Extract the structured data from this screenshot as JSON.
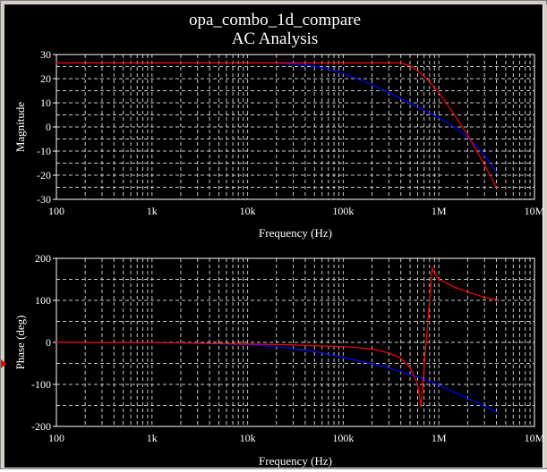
{
  "window": {
    "title": "opa_combo_1d_compare",
    "subtitle": "AC Analysis"
  },
  "colors": {
    "background": "#000000",
    "text": "#ffffff",
    "grid": "#c8c8c8",
    "red": "#ff0000",
    "blue": "#0000ff",
    "marker": "#ff0000"
  },
  "chart_data": [
    {
      "type": "line",
      "title": "opa_combo_1d_compare",
      "subtitle": "AC Analysis",
      "xlabel": "Frequency (Hz)",
      "ylabel": "Magnitude",
      "xscale": "log",
      "xlim": [
        100,
        10000000
      ],
      "ylim": [
        -30,
        30
      ],
      "grid": true,
      "xticks": [
        100,
        1000,
        10000,
        100000,
        1000000,
        10000000
      ],
      "xticklabels": [
        "100",
        "1k",
        "10k",
        "100k",
        "1M",
        "10M"
      ],
      "yticks": [
        -30,
        -20,
        -10,
        0,
        10,
        20,
        30
      ],
      "yticklabels": [
        "-30",
        "-20",
        "-10",
        "0",
        "10",
        "20",
        "30"
      ],
      "series": [
        {
          "color": "#0000ff",
          "x": [
            100,
            1000,
            10000,
            20000,
            30000,
            50000,
            70000,
            100000,
            150000,
            200000,
            300000,
            500000,
            700000,
            1000000,
            1500000,
            2000000,
            3000000,
            4000000
          ],
          "y": [
            26.5,
            26.5,
            26.5,
            26.4,
            26.1,
            25.2,
            24,
            22.1,
            19.5,
            17.4,
            14.1,
            9.9,
            7,
            3.8,
            -0.5,
            -4.3,
            -11.8,
            -18.8
          ]
        },
        {
          "color": "#ff0000",
          "x": [
            100,
            1000,
            10000,
            50000,
            100000,
            200000,
            300000,
            400000,
            500000,
            600000,
            700000,
            800000,
            1000000,
            1500000,
            2000000,
            3000000,
            4000000
          ],
          "y": [
            26.5,
            26.5,
            26.5,
            26.5,
            26.5,
            26.5,
            26.6,
            26.5,
            25.3,
            23.2,
            20.9,
            18.6,
            14.3,
            4.1,
            -3.5,
            -15.7,
            -25.2
          ]
        }
      ]
    },
    {
      "type": "line",
      "xlabel": "Frequency (Hz)",
      "ylabel": "Phase (deg)",
      "xscale": "log",
      "xlim": [
        100,
        10000000
      ],
      "ylim": [
        -200,
        200
      ],
      "grid": true,
      "xticks": [
        100,
        1000,
        10000,
        100000,
        1000000,
        10000000
      ],
      "xticklabels": [
        "100",
        "1k",
        "10k",
        "100k",
        "1M",
        "10M"
      ],
      "yticks": [
        -200,
        -100,
        0,
        100,
        200
      ],
      "yticklabels": [
        "-200",
        "-100",
        "0",
        "100",
        "200"
      ],
      "series": [
        {
          "color": "#0000ff",
          "x": [
            100,
            1000,
            3000,
            10000,
            20000,
            30000,
            50000,
            100000,
            200000,
            300000,
            500000,
            700000,
            1000000,
            1500000,
            2000000,
            3000000,
            4000000
          ],
          "y": [
            0,
            -0.8,
            -2,
            -5.4,
            -10,
            -15,
            -22,
            -36,
            -51,
            -61,
            -77,
            -88,
            -102,
            -120,
            -133,
            -152,
            -166
          ]
        },
        {
          "color": "#ff0000",
          "x": [
            100,
            1000,
            10000,
            30000,
            50000,
            100000,
            150000,
            200000,
            300000,
            400000,
            500000,
            600000,
            650000,
            850000,
            900000,
            1000000,
            1500000,
            2000000,
            3000000,
            4000000
          ],
          "y": [
            0,
            -0.4,
            -4,
            -6,
            -8,
            -10,
            -13,
            -16,
            -25,
            -38,
            -60,
            -100,
            -152,
            176,
            165,
            150,
            130,
            120,
            107,
            102
          ]
        }
      ]
    }
  ]
}
